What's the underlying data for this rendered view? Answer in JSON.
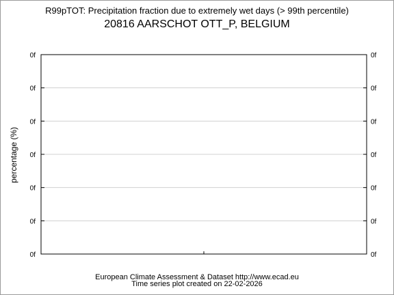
{
  "chart_data": {
    "type": "line",
    "title": "R99pTOT: Precipitation fraction due to extremely wet days (> 99th percentile)",
    "subtitle": "20816 AARSCHOT OTT_P, BELGIUM",
    "ylabel": "percentage (%)",
    "xlabel": "",
    "yticks": [
      "0f",
      "0f",
      "0f",
      "0f",
      "0f",
      "0f",
      "0f"
    ],
    "grid": true,
    "series": []
  },
  "footer": {
    "line1": "European Climate Assessment & Dataset  http://www.ecad.eu",
    "line2": "Time series plot created on 22-02-2026"
  },
  "colors": {
    "gridline": "#d0d0d0",
    "axis": "#000000"
  }
}
